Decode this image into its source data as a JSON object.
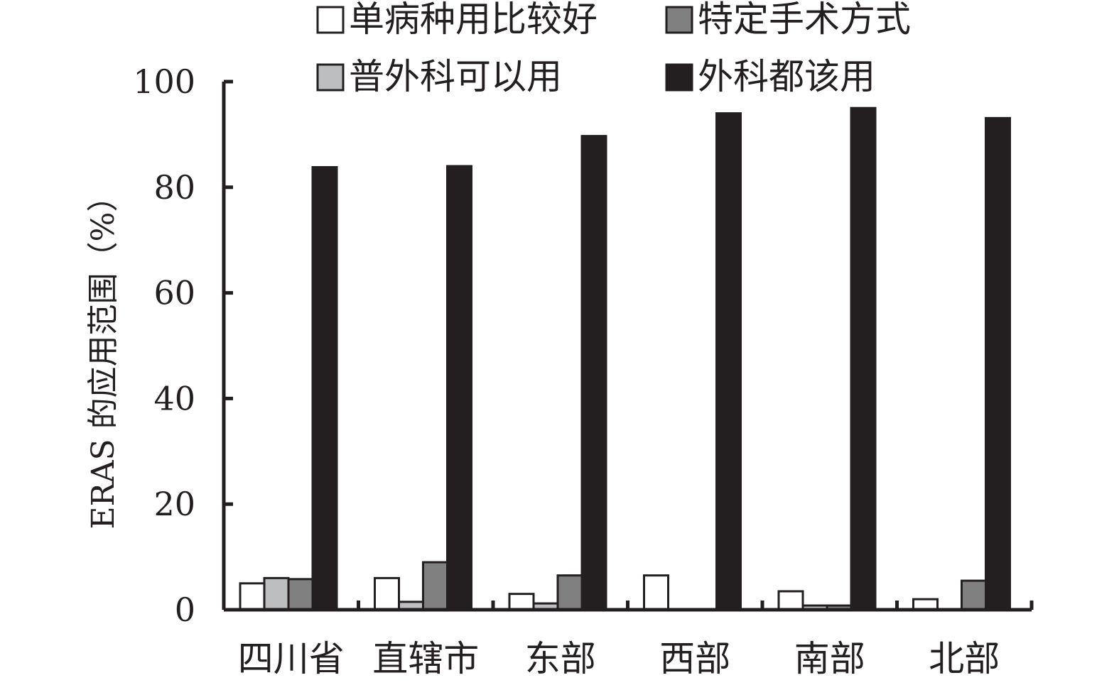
{
  "chart_data": {
    "type": "bar",
    "title": "",
    "xlabel": "",
    "ylabel": "ERAS 的应用范围（%）",
    "ylim": [
      0,
      100
    ],
    "yticks": [
      0,
      20,
      40,
      60,
      80,
      100
    ],
    "grid": false,
    "legend_position": "top",
    "categories": [
      "四川省",
      "直辖市",
      "东部",
      "西部",
      "南部",
      "北部"
    ],
    "series": [
      {
        "name": "单病种用比较好",
        "color": "#ffffff",
        "values": [
          5,
          6,
          3,
          6.5,
          3.5,
          2
        ]
      },
      {
        "name": "普外科可以用",
        "color": "#bcbec0",
        "values": [
          6,
          1.5,
          1.2,
          0,
          0.8,
          0
        ]
      },
      {
        "name": "特定手术方式",
        "color": "#808080",
        "values": [
          5.8,
          9,
          6.5,
          0,
          0.8,
          5.5
        ]
      },
      {
        "name": "外科都该用",
        "color": "#231f20",
        "values": [
          83.8,
          84,
          89.7,
          94,
          95,
          93.1
        ]
      }
    ]
  }
}
